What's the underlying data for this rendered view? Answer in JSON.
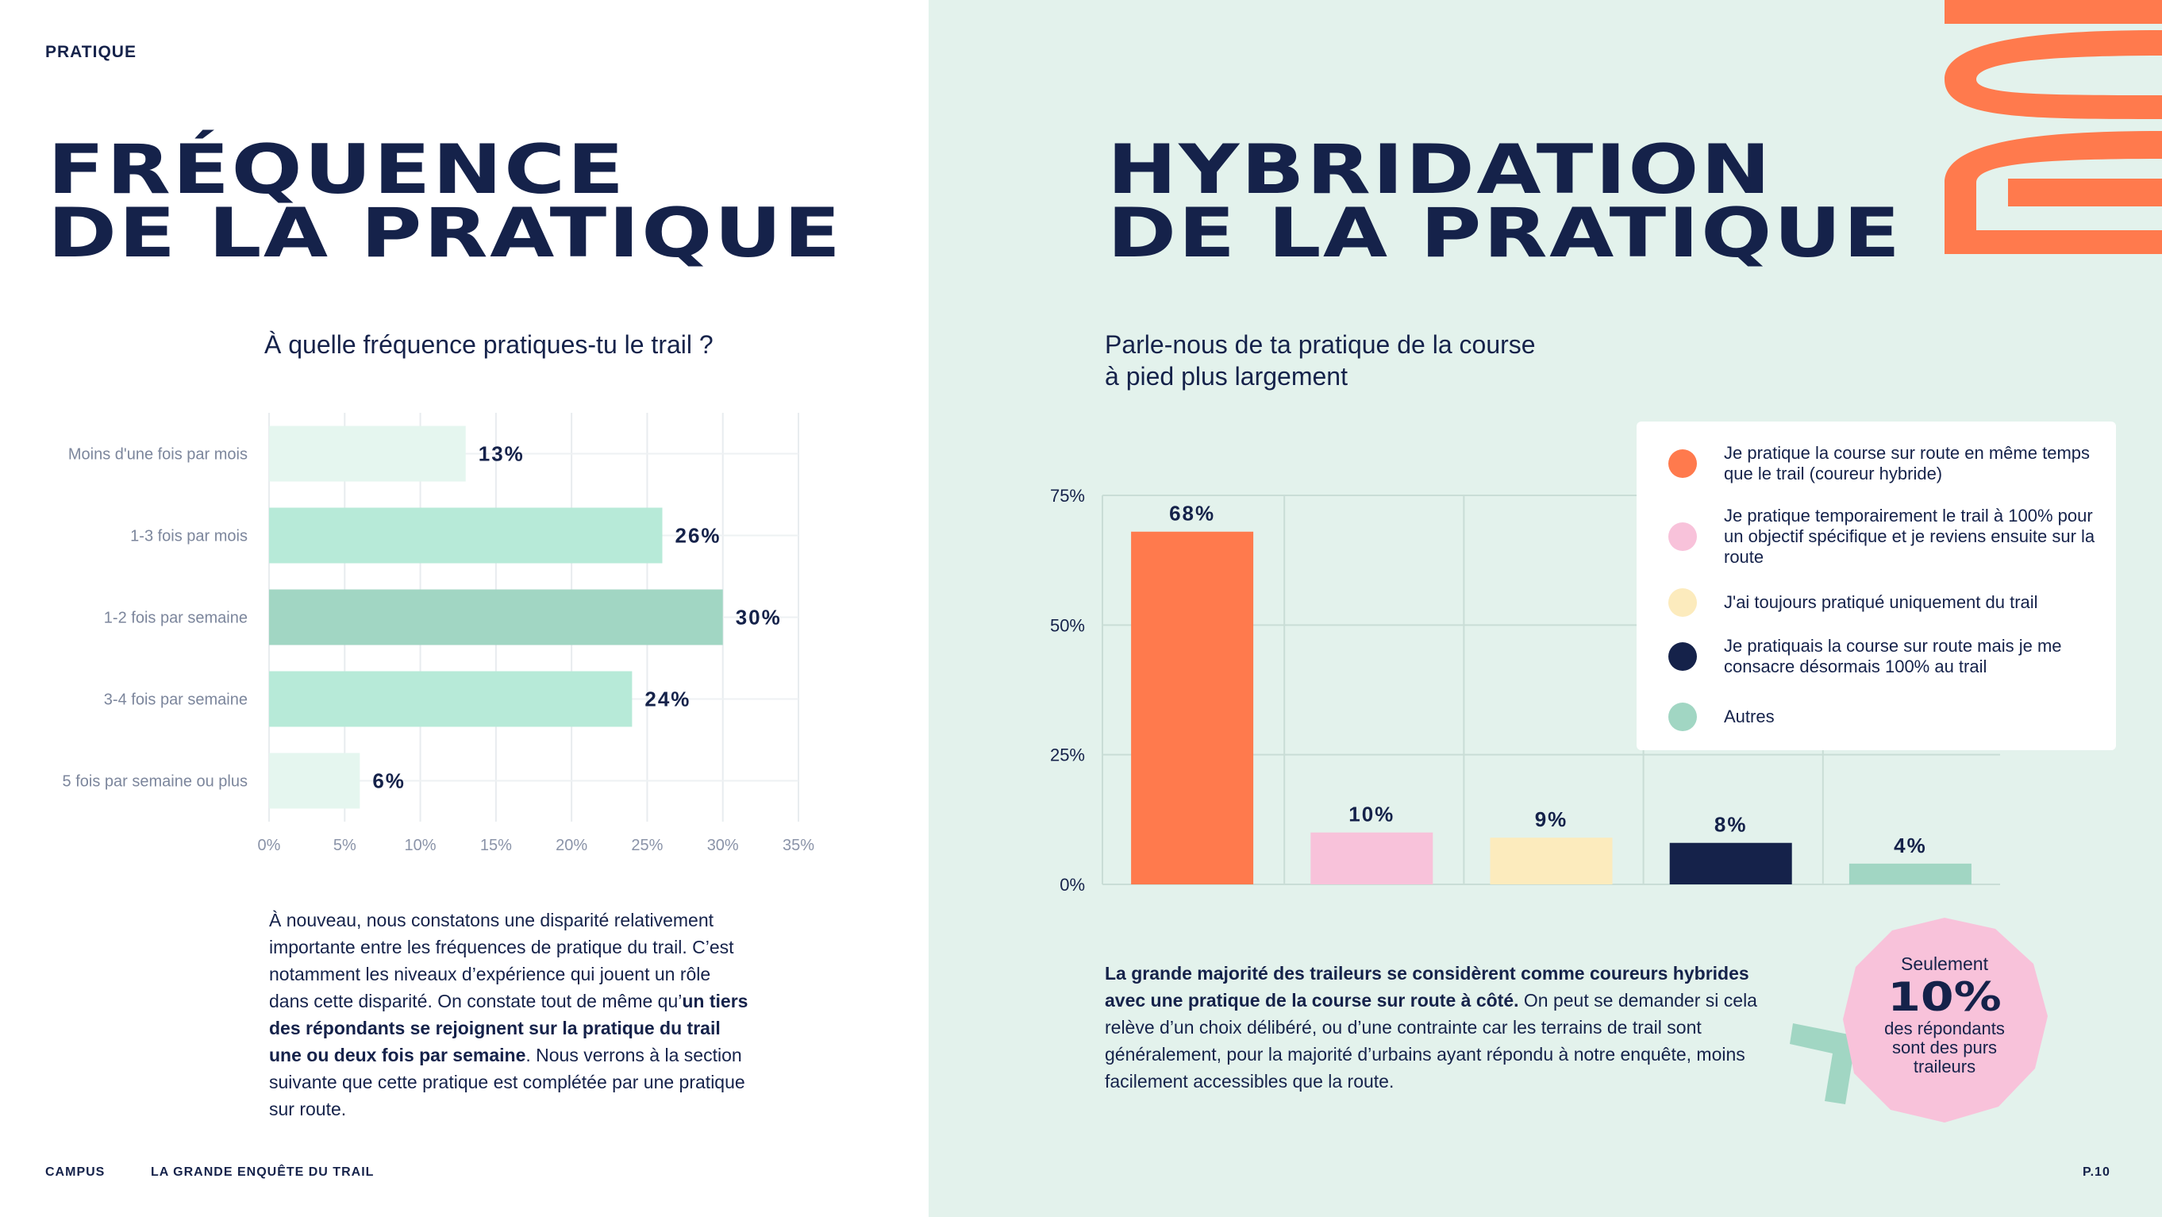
{
  "header": {
    "section": "PRATIQUE"
  },
  "left": {
    "title_line1": "FRÉQUENCE",
    "title_line2": "DE LA PRATIQUE",
    "question": "À quelle fréquence pratiques-tu le trail ?",
    "body": {
      "p1": "À nouveau, nous constatons une disparité relativement importante entre les fréquences de pratique du trail. C’est notamment les niveaux d’expérience qui jouent un rôle dans cette disparité. On constate tout de même qu’",
      "bold": "un tiers des répondants se rejoignent sur la pratique du trail une ou deux fois par semaine",
      "p2": ". Nous verrons à la section suivante que cette pratique est complétée par une pratique sur route."
    }
  },
  "right": {
    "title_line1": "HYBRIDATION",
    "title_line2": "DE LA PRATIQUE",
    "question_line1": "Parle-nous de ta pratique de la course",
    "question_line2": "à pied plus largement",
    "body": {
      "bold": "La grande majorité des traileurs se considèrent comme coureurs hybrides avec une pratique de la course sur route à côté.",
      "rest": " On peut se demander si cela relève d’un choix délibéré, ou d’une contrainte car les terrains de trail sont généralement, pour la majorité d’urbains ayant répondu à notre enquête, moins facilement accessibles que la route."
    },
    "badge": {
      "top": "Seulement",
      "value": "10%",
      "bottom": "des répondants sont des purs traileurs"
    }
  },
  "chart_data": [
    {
      "type": "bar",
      "orientation": "horizontal",
      "title": "À quelle fréquence pratiques-tu le trail ?",
      "categories": [
        "Moins d'une fois par mois",
        "1-3 fois par mois",
        "1-2 fois par semaine",
        "3-4 fois par semaine",
        "5 fois par semaine ou plus"
      ],
      "values": [
        13,
        26,
        30,
        24,
        6
      ],
      "data_labels": [
        "13%",
        "26%",
        "30%",
        "24%",
        "6%"
      ],
      "colors": [
        "#e5f6ef",
        "#b7ead8",
        "#a1d6c3",
        "#b7ead8",
        "#e5f6ef"
      ],
      "xlim": [
        0,
        35
      ],
      "xticks": [
        0,
        5,
        10,
        15,
        20,
        25,
        30,
        35
      ],
      "xtick_labels": [
        "0%",
        "5%",
        "10%",
        "15%",
        "20%",
        "25%",
        "30%",
        "35%"
      ],
      "grid": true
    },
    {
      "type": "bar",
      "title": "Parle-nous de ta pratique de la course à pied plus largement",
      "categories": [
        "Je pratique la course sur route en même temps que le trail (coureur hybride)",
        "Je pratique temporairement le trail à 100% pour un objectif spécifique et je reviens ensuite sur la route",
        "J'ai toujours pratiqué uniquement du trail",
        "Je pratiquais la course sur route mais je me consacre désormais 100% au trail",
        "Autres"
      ],
      "values": [
        68,
        10,
        9,
        8,
        4
      ],
      "data_labels": [
        "68%",
        "10%",
        "9%",
        "8%",
        "4%"
      ],
      "colors": [
        "#ff7a4d",
        "#f8c2da",
        "#fcebbd",
        "#15224a",
        "#a1d6c3"
      ],
      "ylim": [
        0,
        75
      ],
      "yticks": [
        0,
        25,
        50,
        75
      ],
      "ytick_labels": [
        "0%",
        "25%",
        "50%",
        "75%"
      ],
      "legend": "top-right",
      "grid": true
    }
  ],
  "footer": {
    "brand": "CAMPUS",
    "publication": "LA GRANDE ENQUÊTE DU TRAIL",
    "page": "P.10"
  },
  "colors": {
    "navy": "#15224a",
    "orange": "#ff7a4d",
    "pink": "#f8c2da",
    "mint_bg": "#e3f2ec",
    "mint": "#a1d6c3"
  }
}
